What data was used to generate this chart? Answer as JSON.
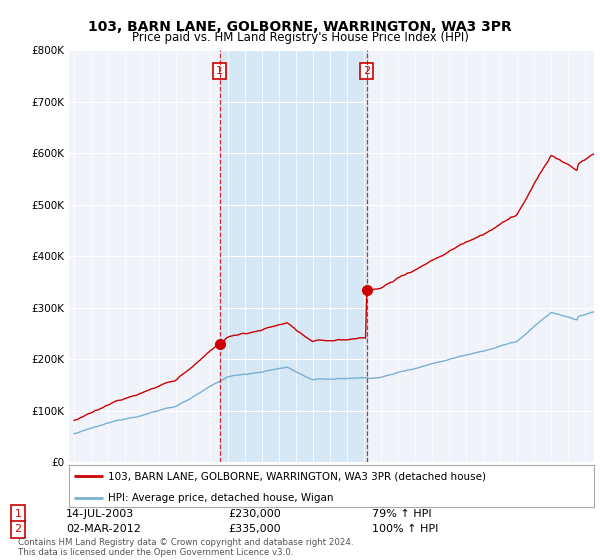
{
  "title": "103, BARN LANE, GOLBORNE, WARRINGTON, WA3 3PR",
  "subtitle": "Price paid vs. HM Land Registry's House Price Index (HPI)",
  "legend_line1": "103, BARN LANE, GOLBORNE, WARRINGTON, WA3 3PR (detached house)",
  "legend_line2": "HPI: Average price, detached house, Wigan",
  "sale1_date": "14-JUL-2003",
  "sale1_price": 230000,
  "sale1_year": 2003.54,
  "sale1_hpi": "79% ↑ HPI",
  "sale2_date": "02-MAR-2012",
  "sale2_price": 335000,
  "sale2_year": 2012.17,
  "sale2_hpi": "100% ↑ HPI",
  "footnote": "Contains HM Land Registry data © Crown copyright and database right 2024.\nThis data is licensed under the Open Government Licence v3.0.",
  "house_color": "#cc0000",
  "hpi_color": "#7aafd4",
  "shade_color": "#d6e8f5",
  "background_color": "#f0f4fa",
  "ylim": [
    0,
    800000
  ],
  "yticks": [
    0,
    100000,
    200000,
    300000,
    400000,
    500000,
    600000,
    700000,
    800000
  ],
  "xstart": 1995,
  "xend": 2025.5
}
